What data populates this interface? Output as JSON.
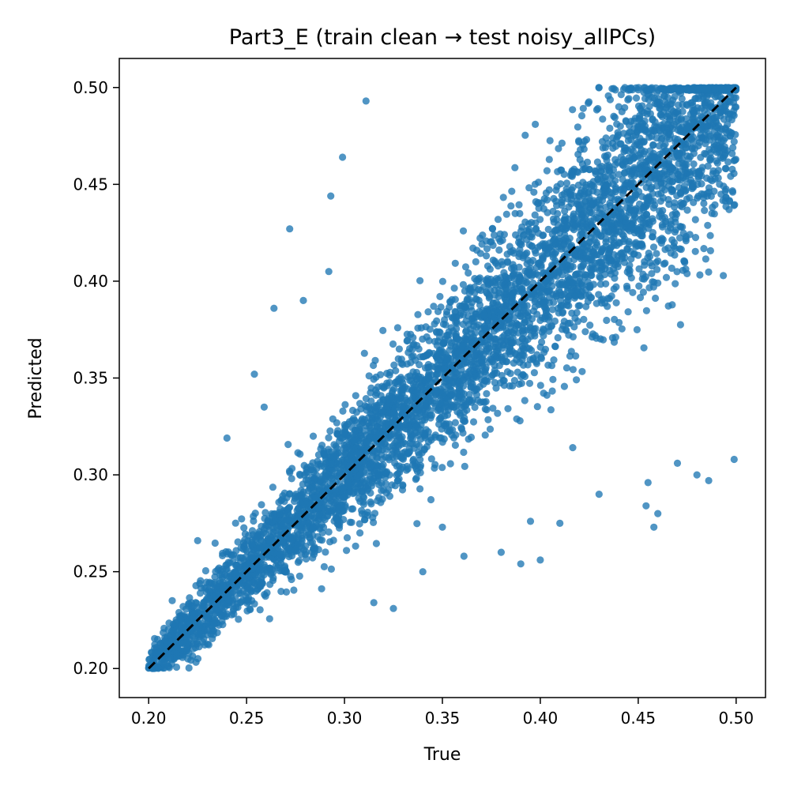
{
  "chart_data": {
    "type": "scatter",
    "title": "Part3_E (train clean → test noisy_allPCs)",
    "xlabel": "True",
    "ylabel": "Predicted",
    "xlim": [
      0.185,
      0.515
    ],
    "ylim": [
      0.185,
      0.515
    ],
    "xticks": [
      "0.20",
      "0.25",
      "0.30",
      "0.35",
      "0.40",
      "0.45",
      "0.50"
    ],
    "yticks": [
      "0.20",
      "0.25",
      "0.30",
      "0.35",
      "0.40",
      "0.45",
      "0.50"
    ],
    "grid": false,
    "point_color": "#1f77b4",
    "reference_line": {
      "x": [
        0.2,
        0.5
      ],
      "y": [
        0.2,
        0.5
      ],
      "color": "#000000",
      "style": "dashed"
    },
    "true_range": [
      0.2,
      0.5
    ],
    "predicted_range": [
      0.2,
      0.5
    ],
    "sample_points": [
      [
        0.272,
        0.427
      ],
      [
        0.293,
        0.444
      ],
      [
        0.299,
        0.464
      ],
      [
        0.311,
        0.493
      ],
      [
        0.254,
        0.352
      ],
      [
        0.279,
        0.39
      ],
      [
        0.264,
        0.386
      ],
      [
        0.292,
        0.405
      ],
      [
        0.325,
        0.231
      ],
      [
        0.315,
        0.234
      ],
      [
        0.34,
        0.25
      ],
      [
        0.361,
        0.258
      ],
      [
        0.39,
        0.254
      ],
      [
        0.4,
        0.256
      ],
      [
        0.455,
        0.296
      ],
      [
        0.486,
        0.297
      ],
      [
        0.499,
        0.308
      ],
      [
        0.46,
        0.28
      ],
      [
        0.458,
        0.273
      ],
      [
        0.454,
        0.284
      ],
      [
        0.38,
        0.26
      ],
      [
        0.395,
        0.276
      ],
      [
        0.225,
        0.266
      ],
      [
        0.24,
        0.319
      ],
      [
        0.259,
        0.335
      ],
      [
        0.41,
        0.275
      ],
      [
        0.43,
        0.29
      ],
      [
        0.47,
        0.306
      ],
      [
        0.48,
        0.3
      ],
      [
        0.35,
        0.273
      ]
    ]
  }
}
